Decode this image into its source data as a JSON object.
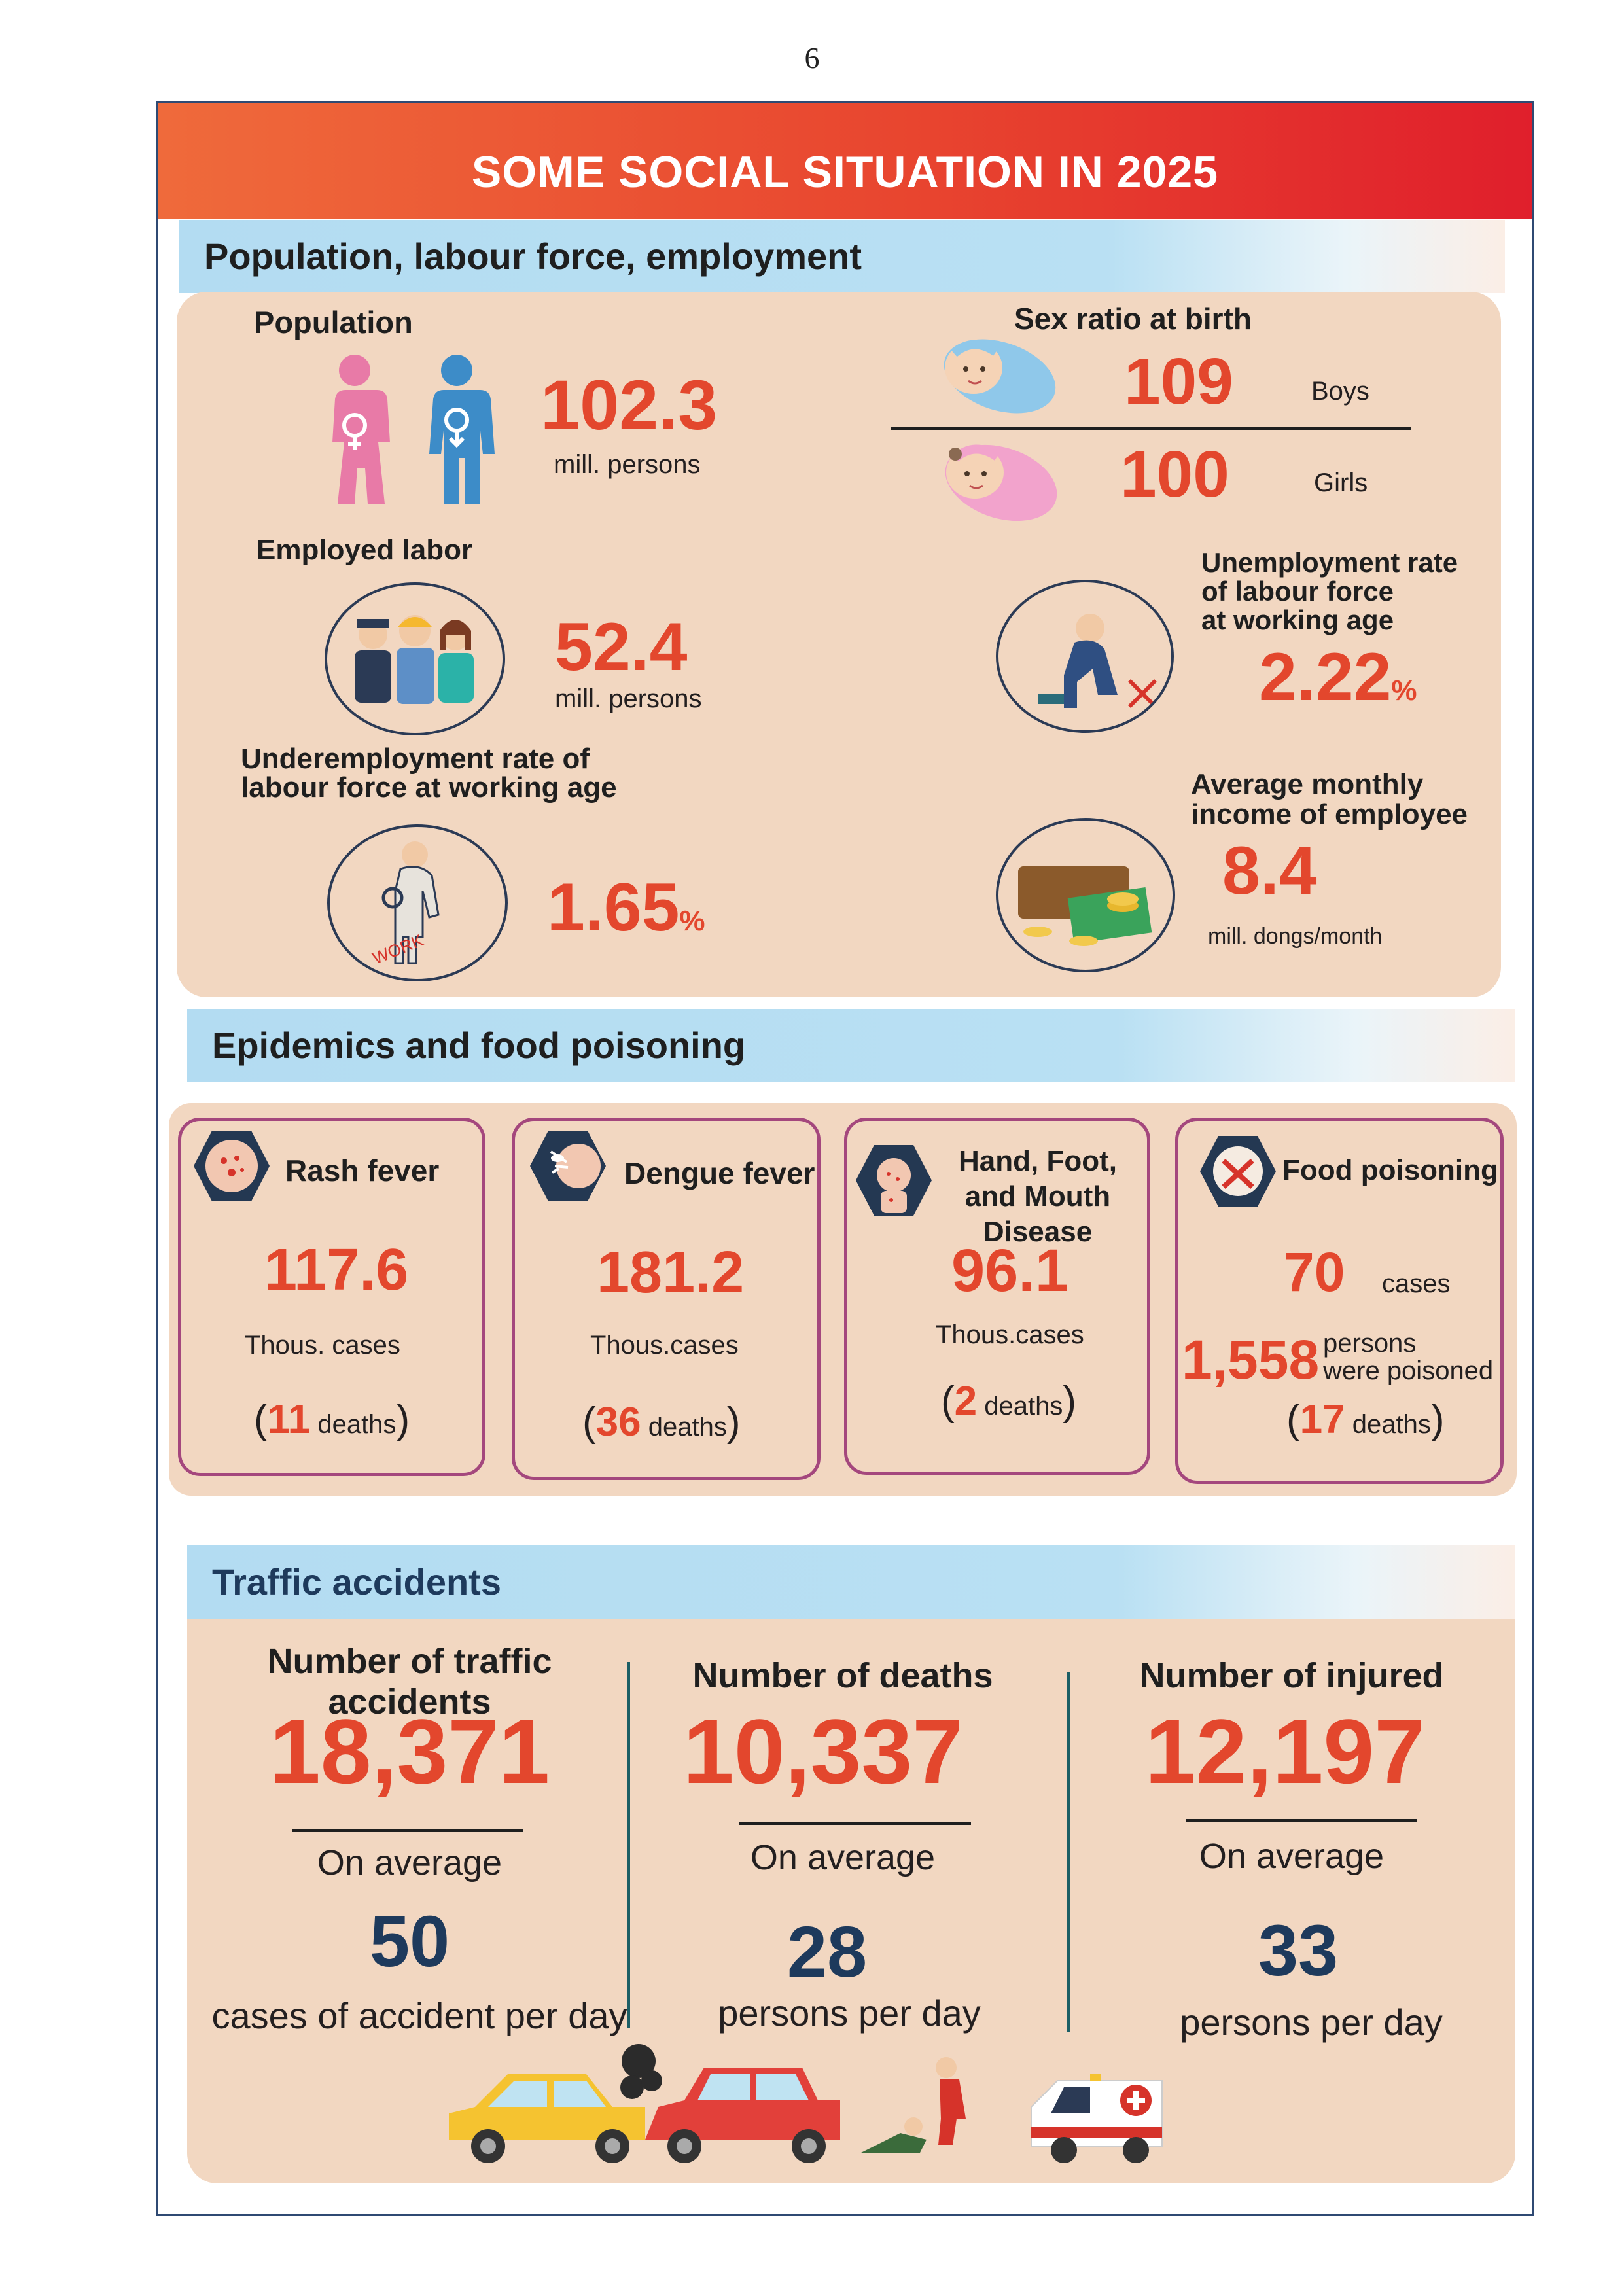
{
  "page_number": "6",
  "title": "SOME SOCIAL SITUATION IN 2025",
  "population_section": {
    "heading": "Population, labour force, employment",
    "population": {
      "label": "Population",
      "value": "102.3",
      "unit": "mill. persons"
    },
    "sex_ratio": {
      "label": "Sex ratio at birth",
      "boys_value": "109",
      "boys_label": "Boys",
      "girls_value": "100",
      "girls_label": "Girls"
    },
    "employed": {
      "label": "Employed labor",
      "value": "52.4",
      "unit": "mill. persons"
    },
    "unemployment": {
      "label_line1": "Unemployment rate",
      "label_line2": "of labour force",
      "label_line3": "at working age",
      "value": "2.22",
      "unit": "%"
    },
    "underemployment": {
      "label_line1": "Underemployment rate of",
      "label_line2": "labour force at working age",
      "value": "1.65",
      "unit": "%",
      "sign_text": "WORK"
    },
    "income": {
      "label_line1": "Average monthly",
      "label_line2": "income of employee",
      "value": "8.4",
      "unit": "mill. dongs/month"
    }
  },
  "epidemics_section": {
    "heading": "Epidemics and food poisoning",
    "cards": [
      {
        "title": "Rash fever",
        "value": "117.6",
        "unit": "Thous. cases",
        "deaths_num": "11",
        "deaths_word": "deaths"
      },
      {
        "title": "Dengue fever",
        "value": "181.2",
        "unit": "Thous.cases",
        "deaths_num": "36",
        "deaths_word": "deaths"
      },
      {
        "title_line1": "Hand, Foot,",
        "title_line2": "and Mouth Disease",
        "value": "96.1",
        "unit": "Thous.cases",
        "deaths_num": "2",
        "deaths_word": "deaths"
      }
    ],
    "food": {
      "title": "Food poisoning",
      "cases_value": "70",
      "cases_label": "cases",
      "poisoned_value": "1,558",
      "poisoned_label_line1": "persons",
      "poisoned_label_line2": "were poisoned",
      "deaths_num": "17",
      "deaths_word": "deaths"
    }
  },
  "traffic_section": {
    "heading": "Traffic accidents",
    "columns": [
      {
        "title": "Number of traffic accidents",
        "value": "18,371",
        "avg_label": "On average",
        "avg_value": "50",
        "avg_unit": "cases of accident per day"
      },
      {
        "title": "Number of deaths",
        "value": "10,337",
        "avg_label": "On average",
        "avg_value": "28",
        "avg_unit": "persons per day"
      },
      {
        "title": "Number of injured",
        "value": "12,197",
        "avg_label": "On average",
        "avg_value": "33",
        "avg_unit": "persons per day"
      }
    ]
  },
  "colors": {
    "accent_red": "#e3472d",
    "panel": "#f2d7c1",
    "section_bar": "#b3dcf2",
    "card_border": "#a4477d",
    "dark_number": "#1e3a5c"
  }
}
